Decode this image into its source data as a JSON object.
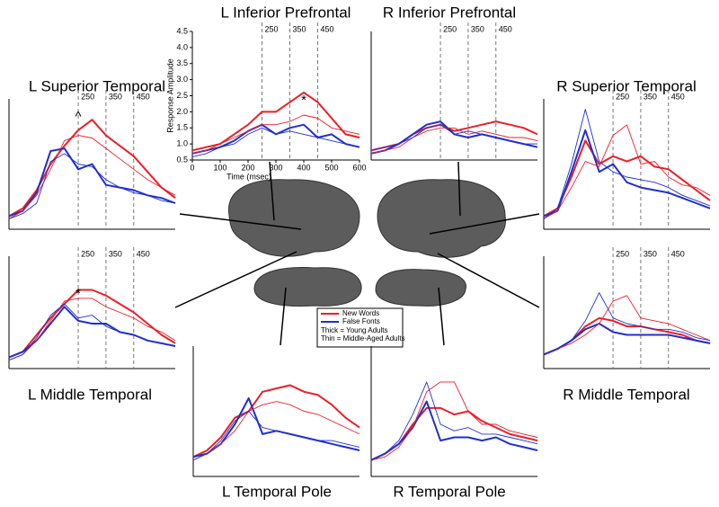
{
  "chart_data": [
    {
      "type": "line",
      "title": "L Inferior Prefrontal",
      "xlabel": "Time (msec)",
      "ylabel": "Response Amplitude",
      "x": [
        0,
        50,
        100,
        150,
        200,
        250,
        300,
        350,
        400,
        450,
        500,
        550,
        600
      ],
      "xlim": [
        0,
        600
      ],
      "ylim": [
        0.5,
        4.5
      ],
      "xticks": [
        0,
        100,
        200,
        300,
        400,
        500,
        600
      ],
      "yticks": [
        0.5,
        {
          "value": 1,
          "label": "1.0"
        },
        1.5,
        {
          "value": 2,
          "label": "2.0"
        },
        2.5,
        {
          "value": 3,
          "label": "3.0"
        },
        3.5,
        {
          "value": 4,
          "label": "4.0"
        },
        4.5
      ],
      "markers": [
        250,
        350,
        450
      ],
      "annotations": [
        {
          "text": "*",
          "x": 400,
          "y": 2.35
        }
      ],
      "series": [
        {
          "color": "#e8202a",
          "width": "thick",
          "values": [
            0.8,
            0.9,
            1.0,
            1.3,
            1.6,
            2.0,
            2.0,
            2.3,
            2.6,
            2.3,
            1.8,
            1.3,
            1.2
          ]
        },
        {
          "color": "#2030c8",
          "width": "thick",
          "values": [
            0.7,
            0.8,
            0.9,
            1.1,
            1.4,
            1.6,
            1.3,
            1.5,
            1.6,
            1.2,
            1.3,
            1.0,
            0.9
          ]
        },
        {
          "color": "#e8202a",
          "width": "thin",
          "values": [
            0.7,
            0.8,
            1.0,
            1.2,
            1.4,
            1.6,
            1.6,
            1.7,
            1.9,
            1.8,
            1.5,
            1.4,
            1.3
          ]
        },
        {
          "color": "#2030c8",
          "width": "thin",
          "values": [
            0.6,
            0.7,
            0.9,
            1.0,
            1.3,
            1.5,
            1.3,
            1.4,
            1.3,
            1.2,
            1.1,
            1.0,
            0.9
          ]
        }
      ]
    },
    {
      "type": "line",
      "title": "R Inferior Prefrontal",
      "x": [
        0,
        50,
        100,
        150,
        200,
        250,
        300,
        350,
        400,
        450,
        500,
        550,
        600
      ],
      "xlim": [
        0,
        600
      ],
      "ylim": [
        0.5,
        4.5
      ],
      "markers": [
        250,
        350,
        450
      ],
      "series": [
        {
          "color": "#e8202a",
          "width": "thick",
          "values": [
            0.8,
            0.9,
            1.0,
            1.3,
            1.5,
            1.6,
            1.4,
            1.5,
            1.6,
            1.7,
            1.6,
            1.5,
            1.3
          ]
        },
        {
          "color": "#2030c8",
          "width": "thick",
          "values": [
            0.7,
            0.8,
            1.0,
            1.3,
            1.6,
            1.7,
            1.3,
            1.2,
            1.3,
            1.2,
            1.1,
            1.0,
            0.9
          ]
        },
        {
          "color": "#e8202a",
          "width": "thin",
          "values": [
            0.7,
            0.8,
            0.9,
            1.2,
            1.4,
            1.5,
            1.5,
            1.3,
            1.4,
            1.3,
            1.2,
            1.2,
            1.1
          ]
        },
        {
          "color": "#2030c8",
          "width": "thin",
          "values": [
            0.8,
            0.9,
            1.0,
            1.2,
            1.5,
            1.6,
            1.3,
            1.4,
            1.3,
            1.2,
            1.1,
            1.0,
            1.0
          ]
        }
      ]
    },
    {
      "type": "line",
      "title": "L Superior Temporal",
      "x": [
        0,
        50,
        100,
        150,
        200,
        250,
        300,
        350,
        400,
        450,
        500,
        550,
        600
      ],
      "xlim": [
        0,
        600
      ],
      "ylim": [
        0,
        5
      ],
      "markers": [
        250,
        350,
        450
      ],
      "annotations": [
        {
          "text": "^",
          "x": 250,
          "y": 4.3
        }
      ],
      "series": [
        {
          "color": "#e8202a",
          "width": "thick",
          "values": [
            0.5,
            0.8,
            1.5,
            2.5,
            3.2,
            3.8,
            4.2,
            3.6,
            3.2,
            2.8,
            2.2,
            1.6,
            1.2
          ]
        },
        {
          "color": "#2030c8",
          "width": "thick",
          "values": [
            0.5,
            0.7,
            1.4,
            3.0,
            3.1,
            2.3,
            2.5,
            1.7,
            1.6,
            1.5,
            1.3,
            1.2,
            1.0
          ]
        },
        {
          "color": "#e8202a",
          "width": "thin",
          "values": [
            0.4,
            0.7,
            1.3,
            2.3,
            3.4,
            3.6,
            3.5,
            3.1,
            2.7,
            2.3,
            1.9,
            1.6,
            1.3
          ]
        },
        {
          "color": "#2030c8",
          "width": "thin",
          "values": [
            0.4,
            0.6,
            1.0,
            2.6,
            2.9,
            2.5,
            2.4,
            1.9,
            1.6,
            1.4,
            1.3,
            1.1,
            1.0
          ]
        }
      ]
    },
    {
      "type": "line",
      "title": "R Superior Temporal",
      "x": [
        0,
        50,
        100,
        150,
        200,
        250,
        300,
        350,
        400,
        450,
        500,
        550,
        600
      ],
      "xlim": [
        0,
        600
      ],
      "ylim": [
        0,
        5
      ],
      "markers": [
        250,
        350,
        450
      ],
      "series": [
        {
          "color": "#e8202a",
          "width": "thick",
          "values": [
            0.5,
            0.8,
            2.0,
            3.4,
            2.5,
            2.8,
            2.6,
            2.8,
            2.4,
            2.3,
            1.9,
            1.5,
            1.1
          ]
        },
        {
          "color": "#2030c8",
          "width": "thick",
          "values": [
            0.5,
            0.7,
            2.2,
            3.8,
            2.2,
            2.5,
            1.8,
            1.6,
            1.5,
            1.4,
            1.2,
            1.0,
            0.8
          ]
        },
        {
          "color": "#e8202a",
          "width": "thin",
          "values": [
            0.4,
            0.7,
            1.6,
            2.6,
            2.4,
            3.6,
            4.0,
            2.5,
            2.6,
            2.0,
            1.7,
            1.6,
            1.3
          ]
        },
        {
          "color": "#2030c8",
          "width": "thin",
          "values": [
            0.4,
            0.8,
            2.5,
            4.6,
            2.6,
            2.2,
            2.0,
            1.9,
            1.8,
            1.6,
            1.3,
            1.1,
            0.9
          ]
        }
      ]
    },
    {
      "type": "line",
      "title": "L Middle Temporal",
      "x": [
        0,
        50,
        100,
        150,
        200,
        250,
        300,
        350,
        400,
        450,
        500,
        550,
        600
      ],
      "xlim": [
        0,
        600
      ],
      "ylim": [
        0,
        4
      ],
      "markers": [
        250,
        350,
        450
      ],
      "annotations": [
        {
          "text": "*",
          "x": 250,
          "y": 2.65
        }
      ],
      "series": [
        {
          "color": "#e8202a",
          "width": "thick",
          "values": [
            0.4,
            0.6,
            1.2,
            1.8,
            2.3,
            2.8,
            2.8,
            2.6,
            2.3,
            2.0,
            1.6,
            1.2,
            0.9
          ]
        },
        {
          "color": "#2030c8",
          "width": "thick",
          "values": [
            0.4,
            0.6,
            1.0,
            1.6,
            2.2,
            1.7,
            1.6,
            1.6,
            1.3,
            1.2,
            1.0,
            0.9,
            0.8
          ]
        },
        {
          "color": "#e8202a",
          "width": "thin",
          "values": [
            0.3,
            0.5,
            1.0,
            1.7,
            2.4,
            2.5,
            2.5,
            2.2,
            2.0,
            1.8,
            1.5,
            1.3,
            1.0
          ]
        },
        {
          "color": "#2030c8",
          "width": "thin",
          "values": [
            0.3,
            0.5,
            1.1,
            1.9,
            2.3,
            1.8,
            1.9,
            1.5,
            1.3,
            1.2,
            1.0,
            0.9,
            0.8
          ]
        }
      ]
    },
    {
      "type": "line",
      "title": "R Middle Temporal",
      "x": [
        0,
        50,
        100,
        150,
        200,
        250,
        300,
        350,
        400,
        450,
        500,
        550,
        600
      ],
      "xlim": [
        0,
        600
      ],
      "ylim": [
        0,
        4
      ],
      "markers": [
        250,
        350,
        450
      ],
      "series": [
        {
          "color": "#e8202a",
          "width": "thick",
          "values": [
            0.5,
            0.7,
            1.0,
            1.5,
            1.8,
            1.7,
            1.5,
            1.5,
            1.4,
            1.3,
            1.2,
            1.0,
            0.9
          ]
        },
        {
          "color": "#2030c8",
          "width": "thick",
          "values": [
            0.5,
            0.7,
            1.0,
            1.4,
            1.6,
            1.3,
            1.2,
            1.2,
            1.2,
            1.2,
            1.1,
            1.0,
            0.9
          ]
        },
        {
          "color": "#e8202a",
          "width": "thin",
          "values": [
            0.5,
            0.7,
            0.9,
            1.2,
            1.6,
            2.4,
            2.6,
            1.8,
            1.7,
            1.6,
            1.4,
            1.2,
            1.0
          ]
        },
        {
          "color": "#2030c8",
          "width": "thin",
          "values": [
            0.5,
            0.7,
            1.0,
            1.7,
            2.7,
            1.8,
            1.6,
            1.5,
            1.4,
            1.4,
            1.3,
            1.1,
            1.0
          ]
        }
      ]
    },
    {
      "type": "line",
      "title": "L Temporal Pole",
      "x": [
        0,
        50,
        100,
        150,
        200,
        250,
        300,
        350,
        400,
        450,
        500,
        550,
        600
      ],
      "xlim": [
        0,
        600
      ],
      "ylim": [
        0,
        4
      ],
      "series": [
        {
          "color": "#e8202a",
          "width": "thick",
          "values": [
            0.6,
            0.8,
            1.2,
            1.8,
            2.0,
            2.6,
            2.7,
            2.8,
            2.6,
            2.5,
            2.2,
            1.8,
            1.5
          ]
        },
        {
          "color": "#2030c8",
          "width": "thick",
          "values": [
            0.6,
            0.7,
            1.0,
            1.6,
            2.4,
            1.3,
            1.4,
            1.3,
            1.2,
            1.1,
            1.0,
            0.9,
            0.8
          ]
        },
        {
          "color": "#e8202a",
          "width": "thin",
          "values": [
            0.5,
            0.7,
            1.0,
            1.4,
            2.0,
            2.2,
            2.3,
            2.2,
            2.0,
            1.9,
            1.7,
            1.5,
            1.3
          ]
        },
        {
          "color": "#2030c8",
          "width": "thin",
          "values": [
            0.5,
            0.7,
            1.1,
            1.7,
            2.0,
            1.5,
            1.4,
            1.3,
            1.2,
            1.1,
            1.1,
            1.0,
            0.9
          ]
        }
      ]
    },
    {
      "type": "line",
      "title": "R Temporal Pole",
      "x": [
        0,
        50,
        100,
        150,
        200,
        250,
        300,
        350,
        400,
        450,
        500,
        550,
        600
      ],
      "xlim": [
        0,
        600
      ],
      "ylim": [
        0,
        4
      ],
      "series": [
        {
          "color": "#e8202a",
          "width": "thick",
          "values": [
            0.5,
            0.7,
            1.0,
            1.6,
            2.1,
            2.1,
            1.9,
            2.0,
            1.7,
            1.5,
            1.3,
            1.2,
            1.1
          ]
        },
        {
          "color": "#2030c8",
          "width": "thick",
          "values": [
            0.5,
            0.7,
            1.0,
            1.5,
            2.3,
            1.1,
            1.2,
            1.2,
            1.1,
            1.2,
            1.0,
            0.9,
            0.8
          ]
        },
        {
          "color": "#e8202a",
          "width": "thin",
          "values": [
            0.5,
            0.6,
            0.9,
            1.5,
            2.6,
            2.9,
            2.9,
            2.0,
            1.6,
            1.6,
            1.4,
            1.3,
            1.2
          ]
        },
        {
          "color": "#2030c8",
          "width": "thin",
          "values": [
            0.5,
            0.7,
            1.1,
            1.9,
            2.9,
            1.6,
            1.4,
            1.5,
            1.3,
            1.3,
            1.2,
            1.1,
            1.0
          ]
        }
      ]
    }
  ],
  "legend": {
    "entries": [
      {
        "name": "New Words",
        "color": "#e8202a"
      },
      {
        "name": "False Fonts",
        "color": "#2030c8"
      }
    ],
    "notes": [
      "Thick = Young Adults",
      "Thin = Middle-Aged Adults"
    ]
  }
}
